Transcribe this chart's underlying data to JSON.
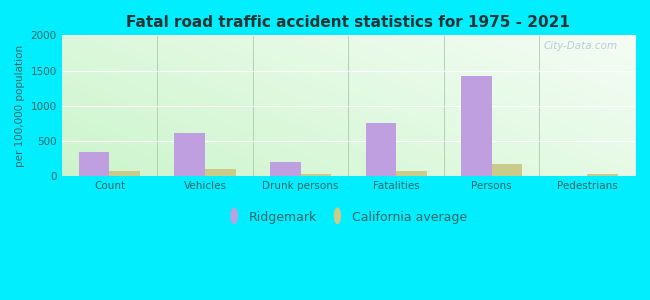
{
  "title": "Fatal road traffic accident statistics for 1975 - 2021",
  "categories": [
    "Count",
    "Vehicles",
    "Drunk persons",
    "Fatalities",
    "Persons",
    "Pedestrians"
  ],
  "ridgemark_values": [
    340,
    610,
    200,
    750,
    1420,
    0
  ],
  "ca_avg_values": [
    75,
    100,
    25,
    80,
    175,
    25
  ],
  "ridgemark_color": "#bf9fdf",
  "ca_avg_color": "#c8cc88",
  "ylabel": "per 100,000 population",
  "ylim": [
    0,
    2000
  ],
  "yticks": [
    0,
    500,
    1000,
    1500,
    2000
  ],
  "outer_bg": "#00eeff",
  "bar_width": 0.32,
  "legend_labels": [
    "Ridgemark",
    "California average"
  ],
  "watermark": "City-Data.com",
  "title_color": "#223333",
  "tick_color": "#336666",
  "ylabel_color": "#336666"
}
